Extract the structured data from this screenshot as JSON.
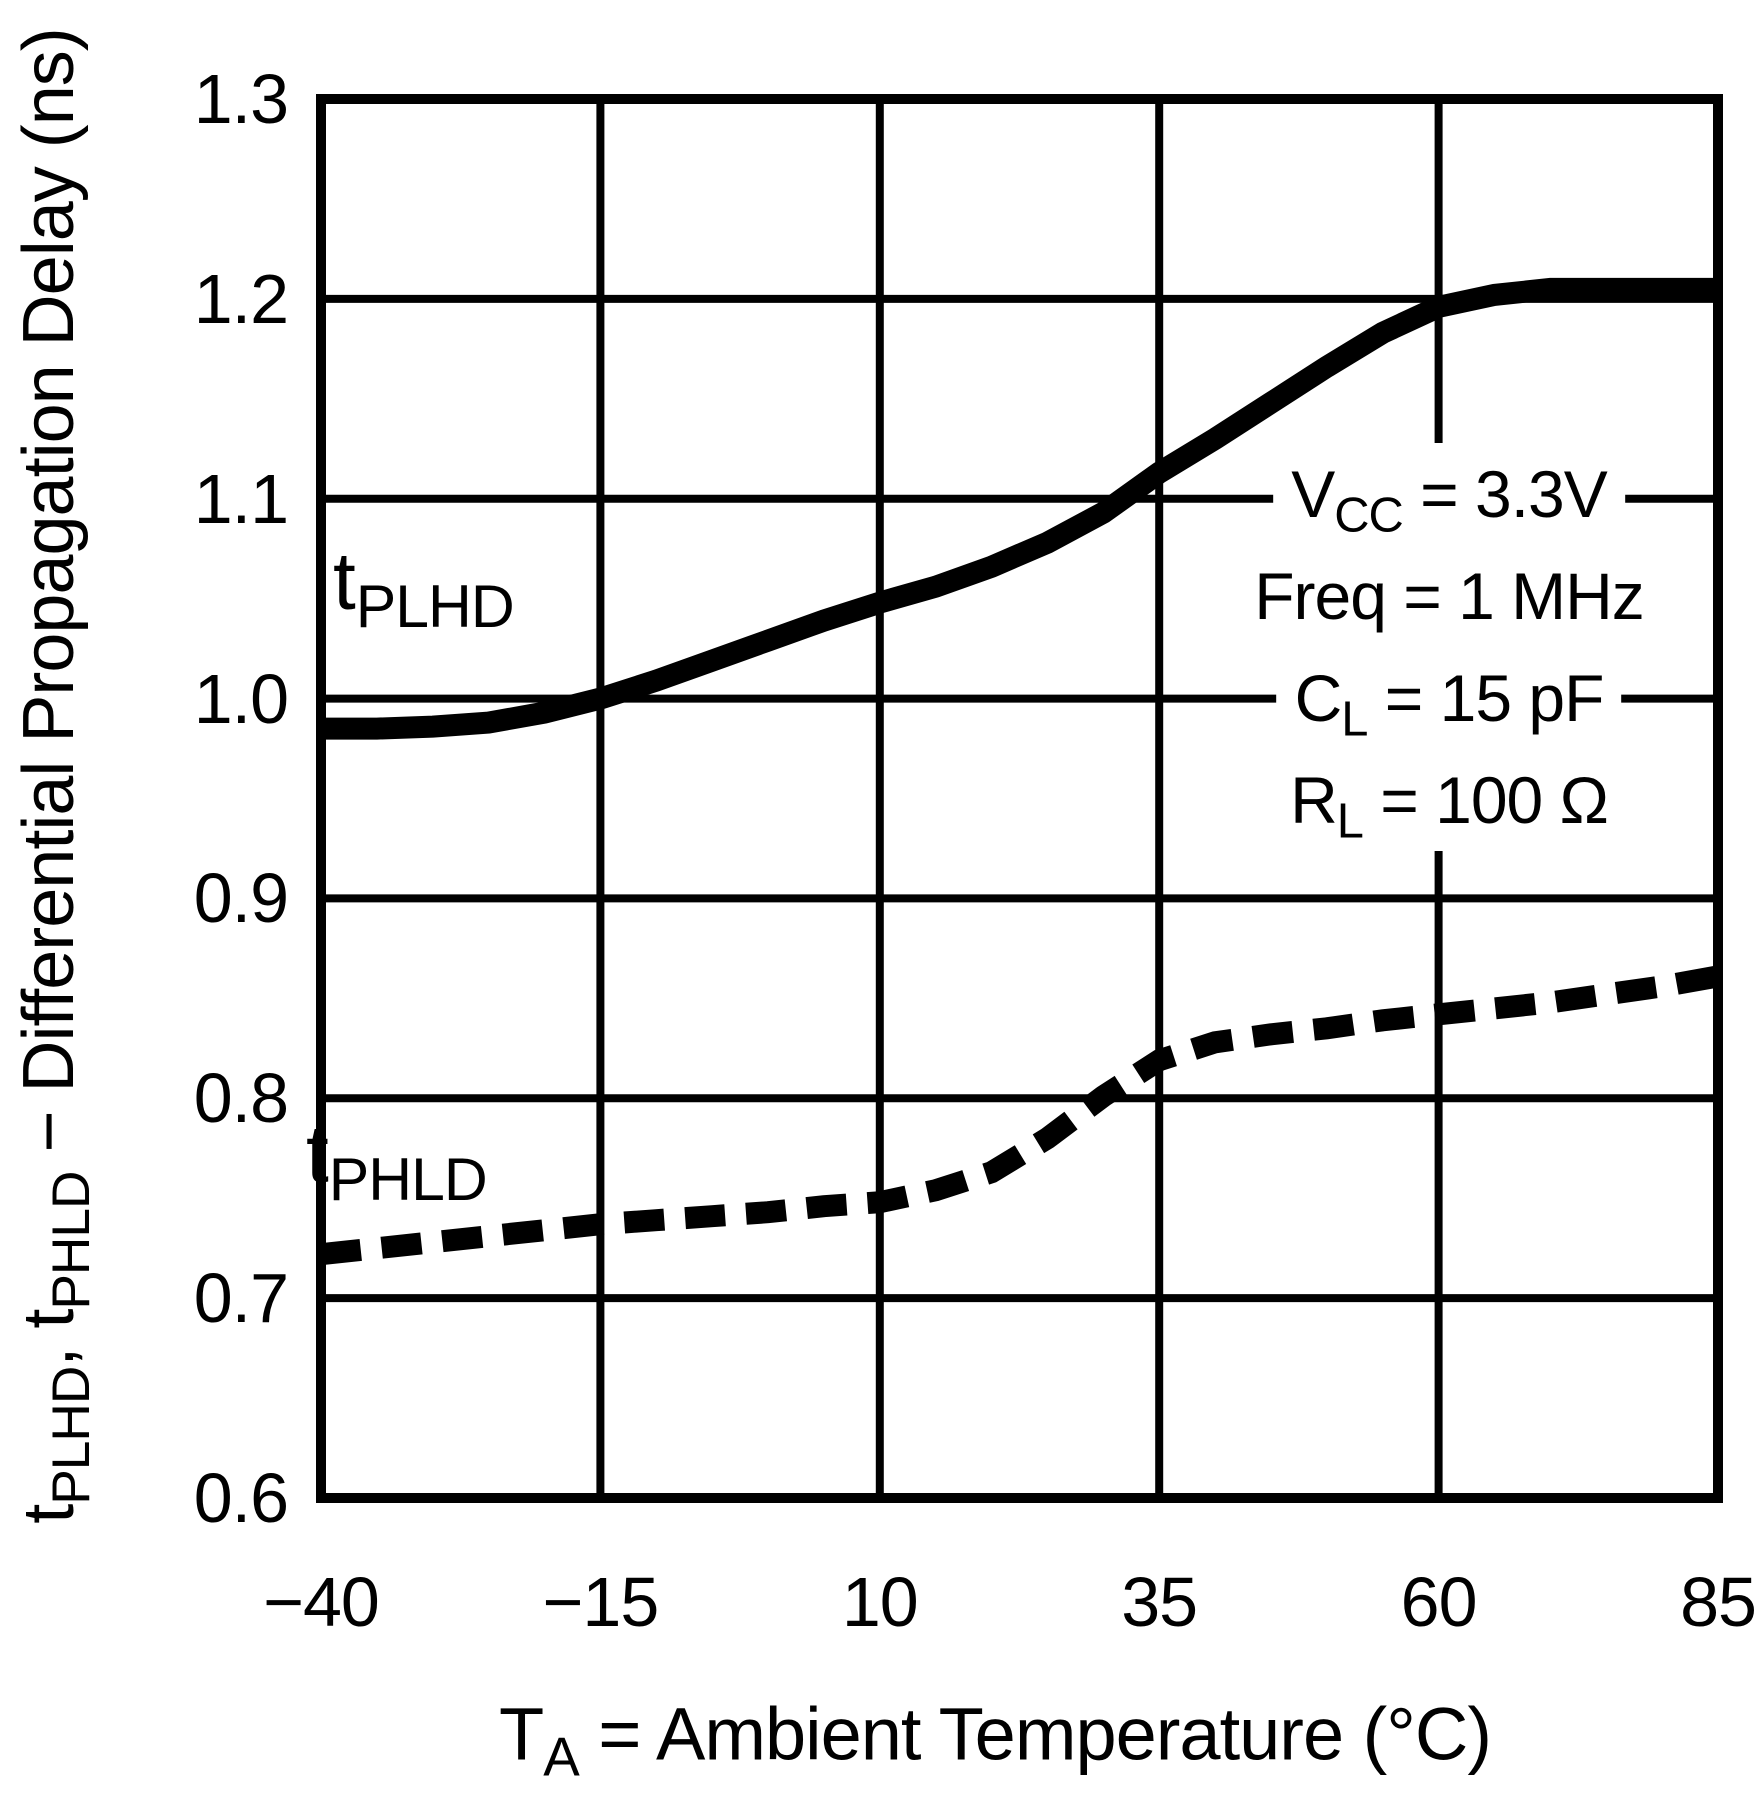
{
  "chart_data": {
    "type": "line",
    "title": "",
    "xlabel": {
      "pre": "T",
      "sub": "A",
      "post": " = Ambient Temperature (°C)"
    },
    "ylabel": {
      "p1": "t",
      "s1": "PLHD",
      "p2": ", t",
      "s2": "PHLD",
      "p3": " − Differential Propagation Delay (ns)"
    },
    "xlim": [
      -40,
      85
    ],
    "ylim": [
      0.6,
      1.3
    ],
    "grid": true,
    "legend_position": "inline-curve-labels",
    "x_tick_values": [
      -40,
      -15,
      10,
      35,
      60,
      85
    ],
    "x_ticks": [
      "−40",
      "−15",
      "10",
      "35",
      "60",
      "85"
    ],
    "y_tick_values": [
      1.3,
      1.2,
      1.1,
      1.0,
      0.9,
      0.8,
      0.7,
      0.6
    ],
    "y_ticks": [
      "1.3",
      "1.2",
      "1.1",
      "1.0",
      "0.9",
      "0.8",
      "0.7",
      "0.6"
    ],
    "x": [
      -40,
      -35,
      -30,
      -25,
      -20,
      -15,
      -10,
      -5,
      0,
      5,
      10,
      15,
      20,
      25,
      30,
      35,
      40,
      45,
      50,
      55,
      60,
      65,
      70,
      75,
      80,
      85
    ],
    "series": [
      {
        "name": "tPLHD",
        "label": {
          "pre": "t",
          "sub": "PLHD"
        },
        "style": "solid",
        "values": [
          0.985,
          0.985,
          0.986,
          0.988,
          0.993,
          1.0,
          1.009,
          1.019,
          1.029,
          1.039,
          1.048,
          1.056,
          1.066,
          1.078,
          1.093,
          1.113,
          1.13,
          1.148,
          1.166,
          1.183,
          1.196,
          1.202,
          1.205,
          1.205,
          1.205,
          1.205
        ]
      },
      {
        "name": "tPHLD",
        "label": {
          "pre": "t",
          "sub": "PHLD"
        },
        "style": "dashed",
        "values": [
          0.722,
          0.725,
          0.728,
          0.731,
          0.734,
          0.737,
          0.739,
          0.741,
          0.743,
          0.746,
          0.748,
          0.754,
          0.763,
          0.78,
          0.801,
          0.819,
          0.828,
          0.832,
          0.835,
          0.839,
          0.842,
          0.845,
          0.848,
          0.852,
          0.856,
          0.861
        ]
      }
    ],
    "conditions": [
      {
        "pre": "V",
        "sub": "CC",
        "post": " = 3.3V"
      },
      {
        "pre": "Freq",
        "sub": "",
        "post": " = 1 MHz"
      },
      {
        "pre": "C",
        "sub": "L",
        "post": " = 15 pF"
      },
      {
        "pre": "R",
        "sub": "L",
        "post": " = 100 Ω"
      }
    ]
  },
  "colors": {
    "ink": "#000000",
    "background": "#ffffff"
  }
}
